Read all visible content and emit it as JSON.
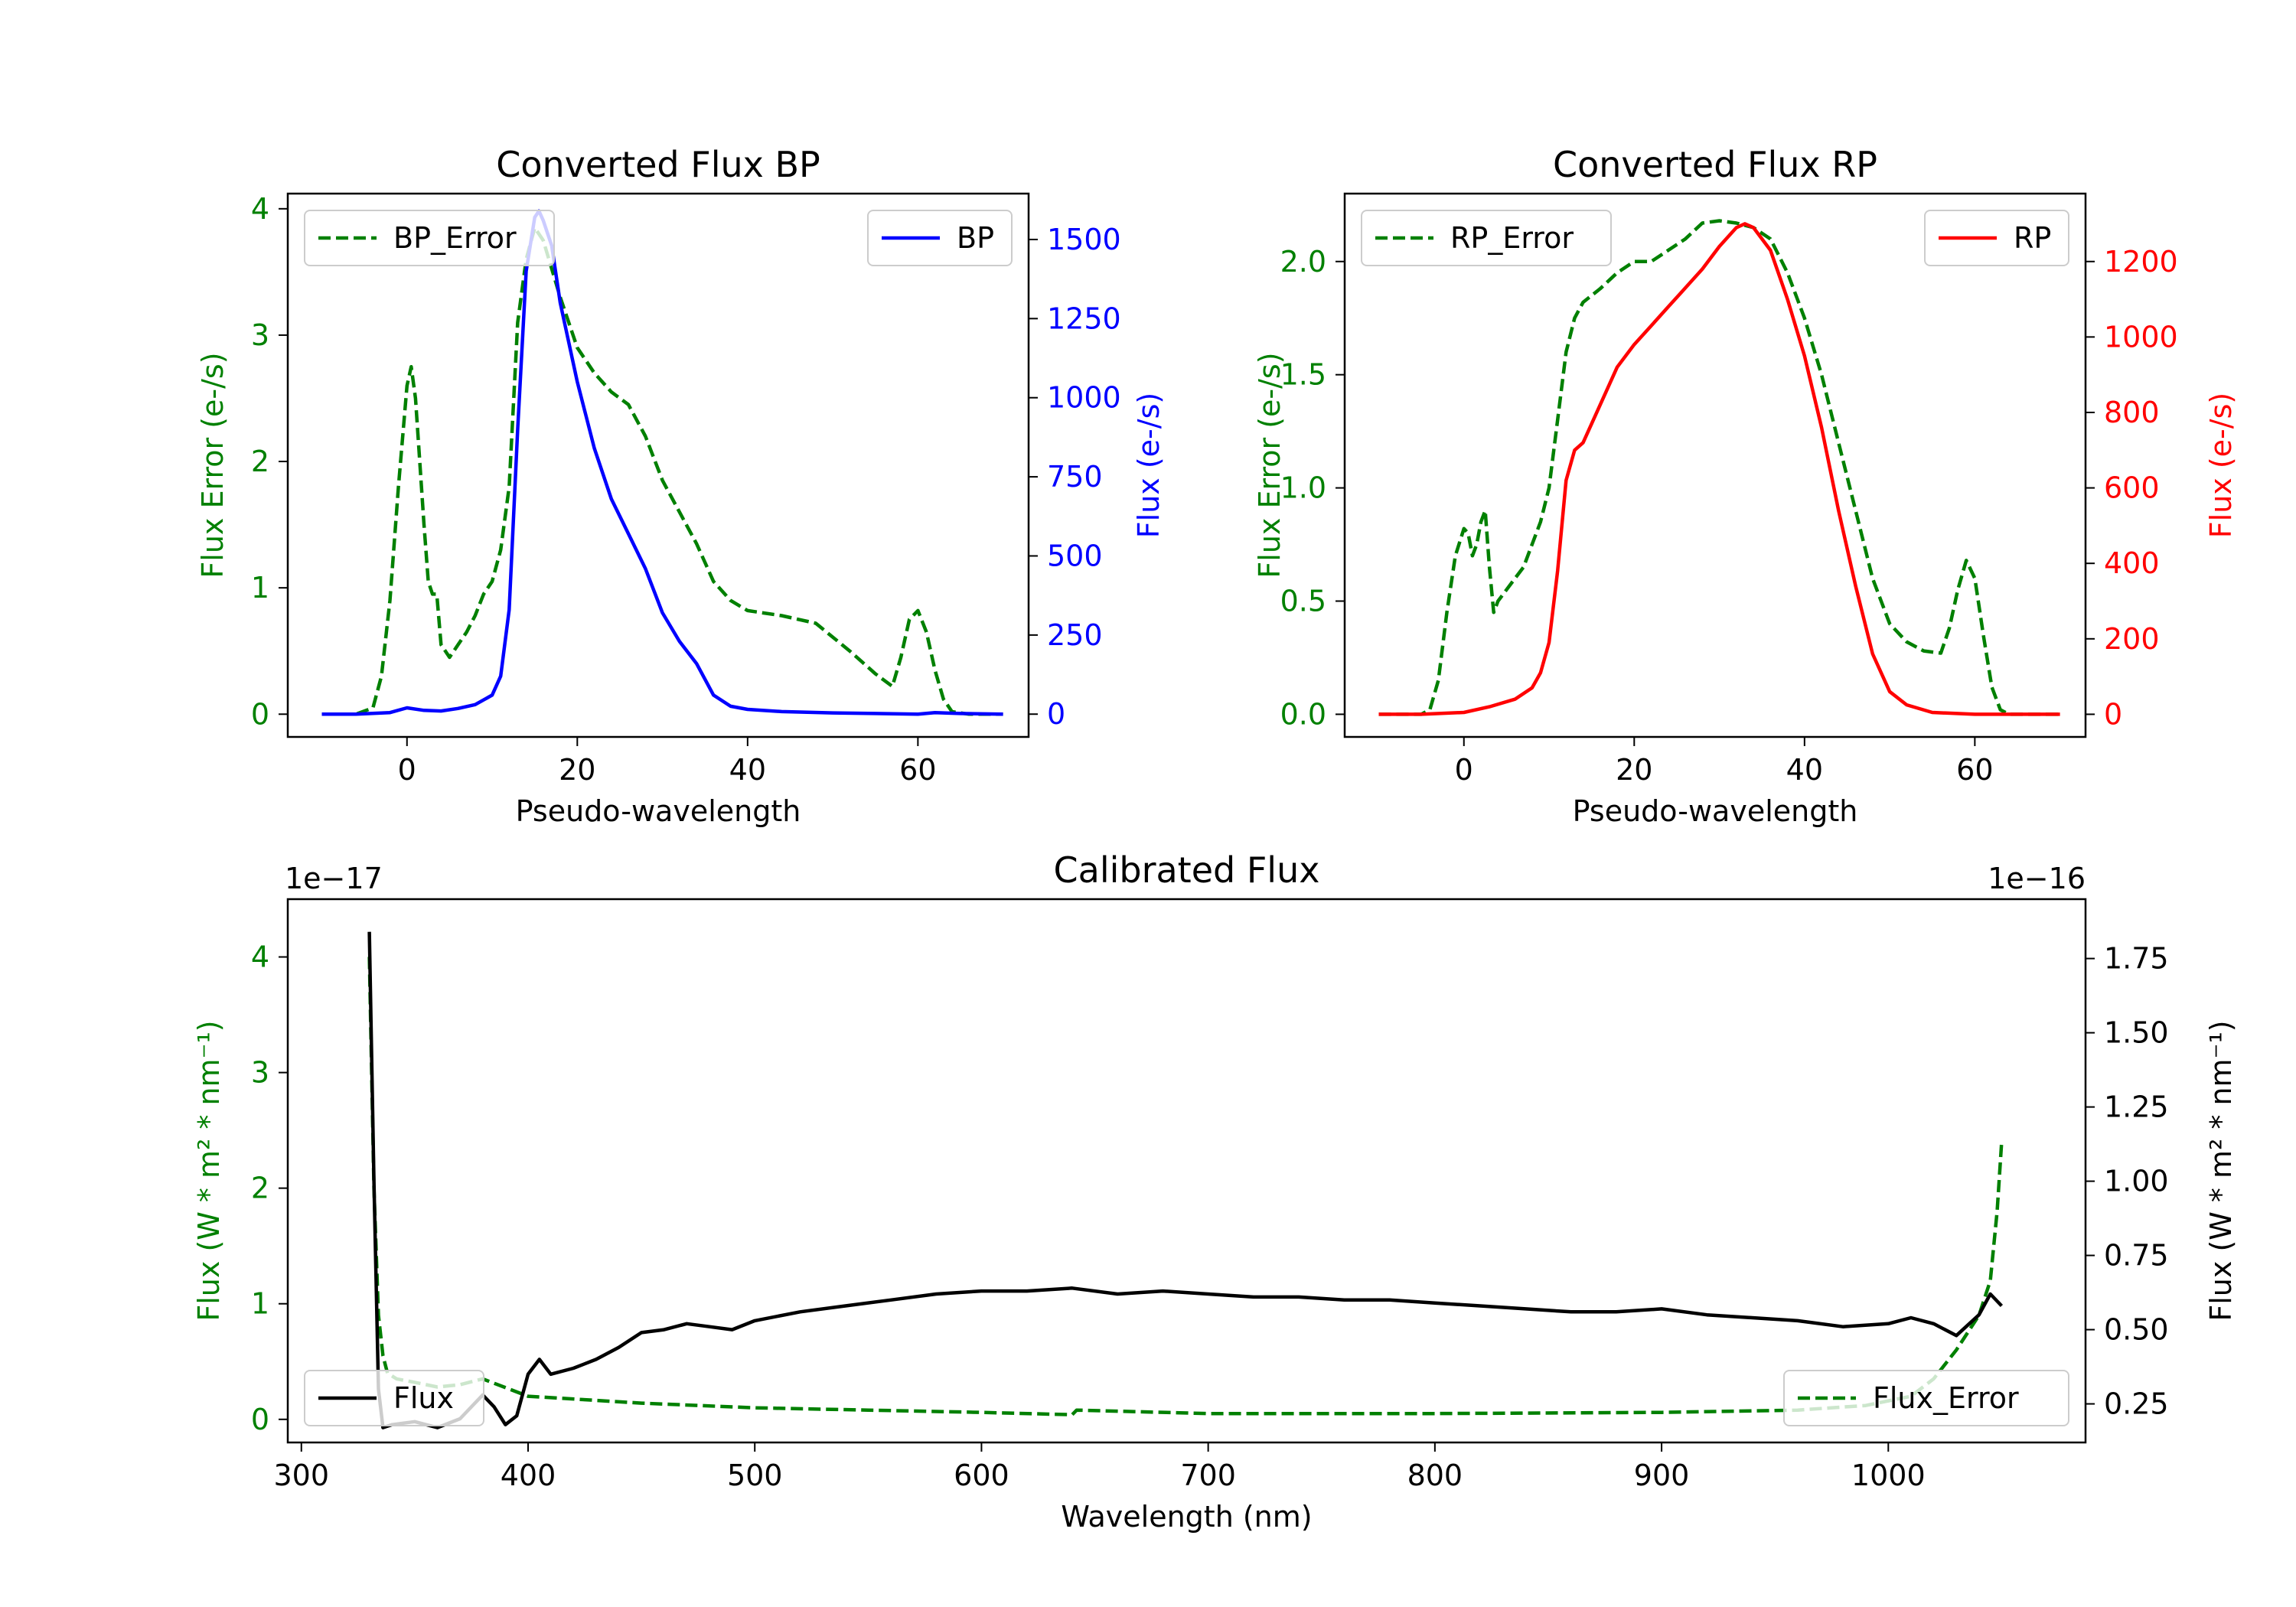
{
  "colors": {
    "green": "#008000",
    "blue": "#0000ff",
    "red": "#ff0000",
    "black": "#000000"
  },
  "chart_data": [
    {
      "id": "bp",
      "type": "line",
      "title": "Converted Flux BP",
      "xlabel": "Pseudo-wavelength",
      "xlim": [
        -14,
        73
      ],
      "xticks": [
        0,
        20,
        40,
        60
      ],
      "left_axis": {
        "label": "Flux Error (e-/s)",
        "color": "#008000",
        "ylim": [
          -0.18,
          4.12
        ],
        "ticks": [
          0,
          1,
          2,
          3,
          4
        ],
        "tick_labels": [
          "0",
          "1",
          "2",
          "3",
          "4"
        ]
      },
      "right_axis": {
        "label": "Flux (e-/s)",
        "color": "#0000ff",
        "ylim": [
          -72,
          1645
        ],
        "ticks": [
          0,
          250,
          500,
          750,
          1000,
          1250,
          1500
        ],
        "tick_labels": [
          "0",
          "250",
          "500",
          "750",
          "1000",
          "1250",
          "1500"
        ]
      },
      "series": [
        {
          "name": "BP_Error",
          "axis": "left",
          "style": "dashed",
          "color": "#008000",
          "x": [
            -10,
            -6,
            -4,
            -3,
            -2,
            -1,
            0,
            0.5,
            1,
            2,
            2.5,
            3,
            3.5,
            4,
            5,
            6,
            7,
            8,
            9,
            10,
            11,
            12,
            13,
            14,
            15,
            16,
            18,
            20,
            22,
            24,
            26,
            28,
            30,
            32,
            34,
            36,
            38,
            40,
            44,
            48,
            52,
            55,
            57,
            58,
            59,
            60,
            61,
            62,
            63,
            64,
            66,
            68,
            70
          ],
          "y": [
            0,
            0,
            0.05,
            0.3,
            0.9,
            1.8,
            2.6,
            2.75,
            2.5,
            1.5,
            1.05,
            0.95,
            0.95,
            0.55,
            0.45,
            0.55,
            0.65,
            0.78,
            0.95,
            1.05,
            1.3,
            1.8,
            3.1,
            3.6,
            3.85,
            3.75,
            3.3,
            2.9,
            2.7,
            2.55,
            2.45,
            2.2,
            1.85,
            1.6,
            1.35,
            1.05,
            0.9,
            0.82,
            0.78,
            0.72,
            0.5,
            0.32,
            0.22,
            0.45,
            0.75,
            0.82,
            0.65,
            0.35,
            0.12,
            0.02,
            0,
            0,
            0
          ]
        },
        {
          "name": "BP",
          "axis": "right",
          "style": "solid",
          "color": "#0000ff",
          "x": [
            -10,
            -6,
            -2,
            0,
            2,
            4,
            6,
            8,
            10,
            11,
            12,
            13,
            14,
            15,
            15.5,
            16,
            17,
            18,
            20,
            22,
            24,
            26,
            28,
            30,
            32,
            34,
            36,
            38,
            40,
            44,
            50,
            55,
            60,
            62,
            65,
            70
          ],
          "y": [
            0,
            0,
            5,
            20,
            12,
            10,
            18,
            30,
            60,
            120,
            330,
            900,
            1400,
            1570,
            1590,
            1560,
            1480,
            1300,
            1050,
            840,
            680,
            570,
            460,
            320,
            230,
            160,
            60,
            25,
            15,
            8,
            4,
            2,
            0,
            5,
            2,
            0
          ]
        }
      ],
      "legend": [
        {
          "label": "BP_Error",
          "position": "top-left"
        },
        {
          "label": "BP",
          "position": "top-right"
        }
      ]
    },
    {
      "id": "rp",
      "type": "line",
      "title": "Converted Flux RP",
      "xlabel": "Pseudo-wavelength",
      "xlim": [
        -14,
        73
      ],
      "xticks": [
        0,
        20,
        40,
        60
      ],
      "left_axis": {
        "label": "Flux Error (e-/s)",
        "color": "#008000",
        "ylim": [
          -0.1,
          2.3
        ],
        "ticks": [
          0.0,
          0.5,
          1.0,
          1.5,
          2.0
        ],
        "tick_labels": [
          "0.0",
          "0.5",
          "1.0",
          "1.5",
          "2.0"
        ]
      },
      "right_axis": {
        "label": "Flux (e-/s)",
        "color": "#ff0000",
        "ylim": [
          -60,
          1380
        ],
        "ticks": [
          0,
          200,
          400,
          600,
          800,
          1000,
          1200
        ],
        "tick_labels": [
          "0",
          "200",
          "400",
          "600",
          "800",
          "1000",
          "1200"
        ]
      },
      "series": [
        {
          "name": "RP_Error",
          "axis": "left",
          "style": "dashed",
          "color": "#008000",
          "x": [
            -10,
            -5,
            -4,
            -3,
            -2,
            -1,
            0,
            0.5,
            1,
            1.5,
            2,
            2.5,
            3,
            3.5,
            4,
            5,
            6,
            7,
            8,
            9,
            10,
            11,
            12,
            13,
            14,
            16,
            18,
            20,
            22,
            24,
            26,
            28,
            30,
            32,
            34,
            36,
            38,
            40,
            42,
            44,
            46,
            48,
            50,
            52,
            54,
            56,
            57,
            58,
            59,
            60,
            61,
            62,
            63,
            64,
            66,
            68,
            70
          ],
          "y": [
            0,
            0,
            0.02,
            0.15,
            0.45,
            0.7,
            0.82,
            0.8,
            0.7,
            0.75,
            0.85,
            0.9,
            0.65,
            0.45,
            0.5,
            0.55,
            0.6,
            0.65,
            0.75,
            0.85,
            1.0,
            1.3,
            1.6,
            1.75,
            1.82,
            1.88,
            1.95,
            2.0,
            2.0,
            2.05,
            2.1,
            2.17,
            2.18,
            2.17,
            2.15,
            2.1,
            1.95,
            1.75,
            1.5,
            1.2,
            0.9,
            0.6,
            0.4,
            0.32,
            0.28,
            0.27,
            0.38,
            0.55,
            0.68,
            0.6,
            0.35,
            0.12,
            0.02,
            0,
            0,
            0,
            0
          ]
        },
        {
          "name": "RP",
          "axis": "right",
          "style": "solid",
          "color": "#ff0000",
          "x": [
            -10,
            -5,
            0,
            3,
            6,
            8,
            9,
            10,
            11,
            12,
            13,
            14,
            16,
            18,
            20,
            22,
            24,
            26,
            28,
            30,
            32,
            33,
            34,
            36,
            38,
            40,
            42,
            44,
            46,
            48,
            50,
            52,
            55,
            60,
            65,
            70
          ],
          "y": [
            0,
            0,
            5,
            20,
            40,
            70,
            110,
            190,
            380,
            620,
            700,
            720,
            820,
            920,
            980,
            1030,
            1080,
            1130,
            1180,
            1240,
            1290,
            1300,
            1290,
            1230,
            1100,
            950,
            760,
            540,
            340,
            160,
            60,
            25,
            5,
            0,
            0,
            0
          ]
        }
      ],
      "legend": [
        {
          "label": "RP_Error",
          "position": "top-left"
        },
        {
          "label": "RP",
          "position": "top-right"
        }
      ]
    },
    {
      "id": "cal",
      "type": "line",
      "title": "Calibrated Flux",
      "xlabel": "Wavelength (nm)",
      "xlim": [
        294,
        1087
      ],
      "xticks": [
        300,
        400,
        500,
        600,
        700,
        800,
        900,
        1000
      ],
      "left_axis": {
        "label": "Flux (W * m² * nm⁻¹)",
        "color": "#008000",
        "offset_text": "1e−17",
        "ylim": [
          -0.2,
          4.5
        ],
        "ticks": [
          0,
          1,
          2,
          3,
          4
        ],
        "tick_labels": [
          "0",
          "1",
          "2",
          "3",
          "4"
        ]
      },
      "right_axis": {
        "label": "Flux (W * m² * nm⁻¹)",
        "color": "#000000",
        "offset_text": "1e−16",
        "ylim": [
          0.12,
          1.95
        ],
        "ticks": [
          0.25,
          0.5,
          0.75,
          1.0,
          1.25,
          1.5,
          1.75
        ],
        "tick_labels": [
          "0.25",
          "0.50",
          "0.75",
          "1.00",
          "1.25",
          "1.50",
          "1.75"
        ]
      },
      "series": [
        {
          "name": "Flux_Error",
          "axis": "left",
          "style": "dashed",
          "color": "#008000",
          "x": [
            330,
            332,
            334,
            336,
            338,
            342,
            350,
            360,
            370,
            380,
            400,
            450,
            500,
            550,
            600,
            640,
            642,
            700,
            800,
            900,
            960,
            990,
            1010,
            1020,
            1030,
            1040,
            1045,
            1048,
            1050
          ],
          "y": [
            4.0,
            2.0,
            0.9,
            0.55,
            0.4,
            0.35,
            0.32,
            0.28,
            0.3,
            0.35,
            0.2,
            0.14,
            0.1,
            0.08,
            0.06,
            0.04,
            0.08,
            0.05,
            0.05,
            0.06,
            0.08,
            0.12,
            0.2,
            0.35,
            0.6,
            0.9,
            1.2,
            1.8,
            2.4
          ]
        },
        {
          "name": "Flux",
          "axis": "right",
          "style": "solid",
          "color": "#000000",
          "x": [
            330,
            332,
            334,
            336,
            340,
            350,
            360,
            370,
            380,
            385,
            390,
            395,
            400,
            405,
            410,
            420,
            430,
            440,
            450,
            460,
            470,
            480,
            490,
            500,
            520,
            540,
            560,
            580,
            600,
            620,
            640,
            660,
            680,
            700,
            720,
            740,
            760,
            780,
            800,
            820,
            840,
            860,
            880,
            900,
            920,
            940,
            960,
            980,
            1000,
            1010,
            1020,
            1030,
            1040,
            1045,
            1050
          ],
          "y": [
            1.84,
            1.0,
            0.3,
            0.17,
            0.18,
            0.19,
            0.17,
            0.2,
            0.28,
            0.24,
            0.18,
            0.21,
            0.35,
            0.4,
            0.35,
            0.37,
            0.4,
            0.44,
            0.49,
            0.5,
            0.52,
            0.51,
            0.5,
            0.53,
            0.56,
            0.58,
            0.6,
            0.62,
            0.63,
            0.63,
            0.64,
            0.62,
            0.63,
            0.62,
            0.61,
            0.61,
            0.6,
            0.6,
            0.59,
            0.58,
            0.57,
            0.56,
            0.56,
            0.57,
            0.55,
            0.54,
            0.53,
            0.51,
            0.52,
            0.54,
            0.52,
            0.48,
            0.55,
            0.62,
            0.58
          ]
        }
      ],
      "legend": [
        {
          "label": "Flux",
          "position": "bottom-left"
        },
        {
          "label": "Flux_Error",
          "position": "bottom-right"
        }
      ]
    }
  ]
}
